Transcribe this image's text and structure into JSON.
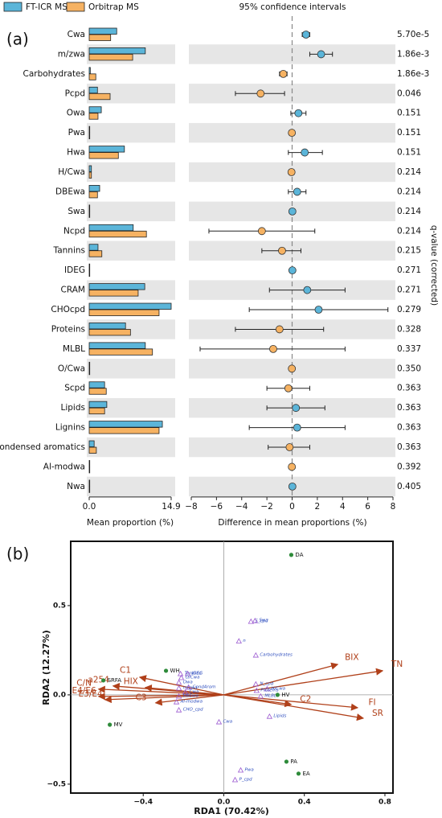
{
  "chart_data": [
    {
      "type": "extended_error_bar",
      "panel_label": "(a)",
      "title": "95% confidence intervals",
      "categories": [
        "Cwa",
        "m/zwa",
        "Carbohydrates",
        "Pcpd",
        "Owa",
        "Pwa",
        "Hwa",
        "H/Cwa",
        "DBEwa",
        "Swa",
        "Ncpd",
        "Tannins",
        "IDEG",
        "CRAM",
        "CHOcpd",
        "Proteins",
        "MLBL",
        "O/Cwa",
        "Scpd",
        "Lipids",
        "Lignins",
        "Condensed aromatics",
        "Al-modwa",
        "Nwa"
      ],
      "series": [
        {
          "name": "FT-ICR MS",
          "color": "#5bb5d9",
          "values": [
            5.0,
            10.2,
            0.2,
            1.5,
            2.2,
            0.1,
            6.4,
            0.4,
            1.9,
            0.1,
            8.0,
            1.6,
            0.1,
            10.1,
            14.9,
            6.6,
            10.2,
            0.1,
            2.8,
            3.2,
            13.3,
            0.9,
            0.1,
            0.1
          ]
        },
        {
          "name": "Orbitrap MS",
          "color": "#f6b262",
          "values": [
            3.9,
            7.9,
            1.2,
            3.8,
            1.6,
            0.1,
            5.3,
            0.4,
            1.5,
            0.1,
            10.4,
            2.3,
            0.1,
            8.9,
            12.7,
            7.5,
            11.5,
            0.1,
            3.1,
            2.8,
            12.7,
            1.3,
            0.1,
            0.1
          ]
        }
      ],
      "xlim": [
        0,
        14.9
      ],
      "xticks": [
        {
          "value": 0,
          "label": "0.0"
        },
        14.9
      ],
      "xlabel": "Mean proportion (%)",
      "difference": {
        "values": [
          1.1,
          2.3,
          -0.7,
          -2.5,
          0.5,
          -0.02,
          1.0,
          -0.05,
          0.4,
          0.02,
          -2.4,
          -0.8,
          0.02,
          1.2,
          2.1,
          -1.0,
          -1.5,
          -0.02,
          -0.3,
          0.3,
          0.4,
          -0.2,
          -0.02,
          0.02
        ],
        "ci_low": [
          0.8,
          1.4,
          -1.0,
          -4.5,
          -0.1,
          -0.05,
          -0.3,
          -0.1,
          -0.3,
          -0.02,
          -6.6,
          -2.4,
          -0.02,
          -1.8,
          -3.4,
          -4.5,
          -7.3,
          -0.05,
          -2.0,
          -2.0,
          -3.4,
          -1.9,
          -0.05,
          -0.02
        ],
        "ci_high": [
          1.4,
          3.2,
          -0.4,
          -0.6,
          1.1,
          0.01,
          2.4,
          0.0,
          1.1,
          0.05,
          1.8,
          0.7,
          0.05,
          4.2,
          7.6,
          2.5,
          4.2,
          0.01,
          1.4,
          2.6,
          4.2,
          1.4,
          0.01,
          0.05
        ],
        "xlim": [
          -8,
          8
        ],
        "xticks": [
          {
            "value": -8,
            "label": "−8"
          },
          {
            "value": -6,
            "label": "−6"
          },
          {
            "value": -4,
            "label": "−4"
          },
          {
            "value": -2,
            "label": "−2"
          },
          0,
          2,
          4,
          6,
          8
        ],
        "xlabel": "Difference in mean proportions (%)"
      },
      "q_label": "q-value (corrected)",
      "q_values": [
        5.7e-05,
        0.00186,
        0.00186,
        0.046,
        0.151,
        0.151,
        0.151,
        0.214,
        0.214,
        0.214,
        0.214,
        0.215,
        0.271,
        0.271,
        0.279,
        0.328,
        0.337,
        0.35,
        0.363,
        0.363,
        0.363,
        0.363,
        0.392,
        0.405
      ],
      "q_value_labels": [
        "5.70e-5",
        "1.86e-3",
        "1.86e-3",
        "0.046",
        "0.151",
        "0.151",
        "0.151",
        "0.214",
        "0.214",
        "0.214",
        "0.214",
        "0.215",
        "0.271",
        "0.271",
        "0.279",
        "0.328",
        "0.337",
        "0.350",
        "0.363",
        "0.363",
        "0.363",
        "0.363",
        "0.392",
        "0.405"
      ]
    },
    {
      "type": "biplot",
      "panel_label": "(b)",
      "xlabel": "RDA1 (70.42%)",
      "ylabel": "RDA2 (12.27%)",
      "xlim": [
        -0.76,
        0.84
      ],
      "ylim": [
        -0.55,
        0.86
      ],
      "xticks": [
        {
          "value": -0.4,
          "label": "−0.4"
        },
        {
          "value": 0,
          "label": "0.0"
        },
        0.4,
        0.8
      ],
      "yticks": [
        {
          "value": -0.5,
          "label": "−0.5"
        },
        {
          "value": 0,
          "label": "0.0"
        },
        0.5
      ],
      "arrows": {
        "color": "#b0401a",
        "labels": [
          "BIX",
          "TN",
          "FI",
          "SR",
          "C2",
          "C1",
          "HIX",
          "a254",
          "C/N",
          "E4/E6",
          "E3/E4",
          "C3"
        ],
        "x": [
          0.566,
          0.789,
          0.665,
          0.693,
          0.335,
          -0.418,
          -0.39,
          -0.55,
          -0.622,
          -0.622,
          -0.59,
          -0.339
        ],
        "y": [
          0.171,
          0.135,
          -0.072,
          -0.131,
          -0.054,
          0.099,
          0.041,
          0.05,
          0.032,
          -0.009,
          -0.027,
          -0.045
        ]
      },
      "samples": {
        "color": "#2e8b3a",
        "labels": [
          "DA",
          "WH",
          "SRFA",
          "MV",
          "HV",
          "PA",
          "EA"
        ],
        "x": [
          0.335,
          -0.287,
          -0.598,
          -0.566,
          0.267,
          0.311,
          0.371
        ],
        "y": [
          0.784,
          0.135,
          0.081,
          -0.167,
          0.0,
          -0.374,
          -0.441
        ]
      },
      "species": {
        "color": "#9b59d0",
        "label_color": "#2f4fbf",
        "labels": [
          "S_cpd",
          "Swa",
          "n",
          "Carbohydrates",
          "Tannins",
          "IDEG",
          "O/Cwa",
          "Owa",
          "m/zwa",
          "CondArom",
          "Cwa",
          "DBEwa",
          "Al-modwa",
          "CHO_cpd",
          "N_cpd",
          "H/Cwa",
          "Proteins",
          "MLBL",
          "Lipids",
          "Cwa",
          "Pwa",
          "P_cpd"
        ],
        "x": [
          0.135,
          0.155,
          0.075,
          0.159,
          -0.215,
          -0.179,
          -0.211,
          -0.223,
          -0.223,
          -0.175,
          -0.191,
          -0.223,
          -0.235,
          -0.223,
          0.159,
          0.215,
          0.163,
          0.183,
          0.227,
          -0.024,
          0.084,
          0.056
        ],
        "y": [
          0.41,
          0.414,
          0.3,
          0.221,
          0.117,
          0.117,
          0.095,
          0.068,
          0.036,
          0.041,
          0.014,
          -0.009,
          -0.041,
          -0.086,
          0.059,
          0.032,
          0.023,
          -0.009,
          -0.122,
          -0.153,
          -0.423,
          -0.477
        ]
      }
    }
  ]
}
